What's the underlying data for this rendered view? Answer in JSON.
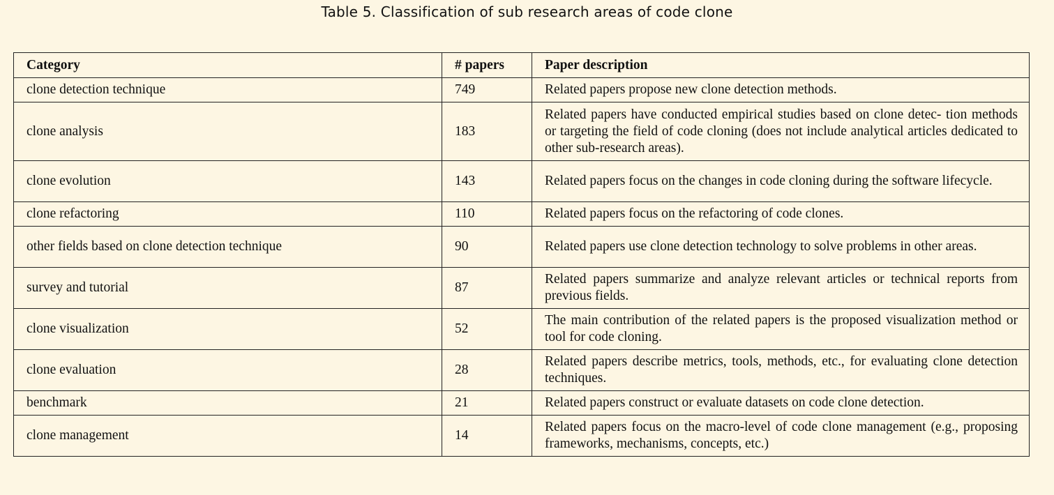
{
  "caption": "Table 5.  Classification of sub research areas of code clone",
  "table": {
    "headers": [
      "Category",
      "# papers",
      "Paper description"
    ],
    "rows": [
      {
        "category": "clone detection technique",
        "papers": "749",
        "description": "Related papers propose new clone detection methods."
      },
      {
        "category": "clone analysis",
        "papers": "183",
        "description": "Related papers have conducted empirical studies based on clone detec- tion methods or targeting the field of code cloning (does not include analytical articles dedicated to other sub-research areas)."
      },
      {
        "category": "clone evolution",
        "papers": "143",
        "description": "Related papers focus on the changes in code cloning during the software lifecycle."
      },
      {
        "category": "clone refactoring",
        "papers": "110",
        "description": "Related papers focus on the refactoring of code clones."
      },
      {
        "category": "other fields based on clone detection technique",
        "papers": "90",
        "description": "Related papers use clone detection technology to solve problems in other areas."
      },
      {
        "category": "survey and tutorial",
        "papers": "87",
        "description": "Related papers summarize and analyze relevant articles or technical reports from previous fields."
      },
      {
        "category": "clone visualization",
        "papers": "52",
        "description": "The main contribution of the related papers is the proposed visualization method or tool for code cloning."
      },
      {
        "category": "clone evaluation",
        "papers": "28",
        "description": "Related papers describe metrics, tools, methods, etc., for evaluating clone detection techniques."
      },
      {
        "category": "benchmark",
        "papers": "21",
        "description": "Related papers construct or evaluate datasets on code clone detection."
      },
      {
        "category": "clone management",
        "papers": "14",
        "description": "Related papers focus on the macro-level of code clone management (e.g., proposing frameworks, mechanisms, concepts, etc.)"
      }
    ]
  }
}
